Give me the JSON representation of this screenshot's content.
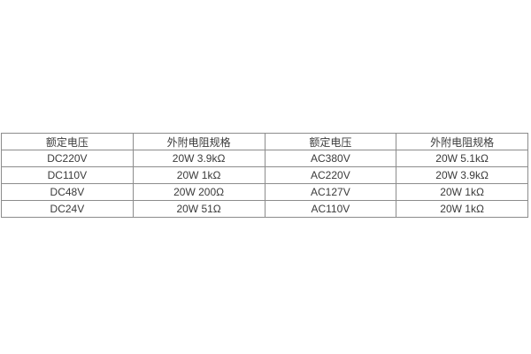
{
  "table": {
    "headers": [
      "额定电压",
      "外附电阻规格",
      "额定电压",
      "外附电阻规格"
    ],
    "rows": [
      [
        "DC220V",
        "20W 3.9kΩ",
        "AC380V",
        "20W 5.1kΩ"
      ],
      [
        "DC110V",
        "20W 1kΩ",
        "AC220V",
        "20W 3.9kΩ"
      ],
      [
        "DC48V",
        "20W 200Ω",
        "AC127V",
        "20W 1kΩ"
      ],
      [
        "DC24V",
        "20W 51Ω",
        "AC110V",
        "20W 1kΩ"
      ]
    ]
  },
  "chart_data": {
    "type": "table",
    "columns": [
      "额定电压",
      "外附电阻规格",
      "额定电压",
      "外附电阻规格"
    ],
    "rows": [
      [
        "DC220V",
        "20W 3.9kΩ",
        "AC380V",
        "20W 5.1kΩ"
      ],
      [
        "DC110V",
        "20W 1kΩ",
        "AC220V",
        "20W 3.9kΩ"
      ],
      [
        "DC48V",
        "20W 200Ω",
        "AC127V",
        "20W 1kΩ"
      ],
      [
        "DC24V",
        "20W 51Ω",
        "AC110V",
        "20W 1kΩ"
      ]
    ]
  },
  "colors": {
    "border": "#8c8c8c",
    "text": "#3b3b3b",
    "background": "#ffffff"
  }
}
